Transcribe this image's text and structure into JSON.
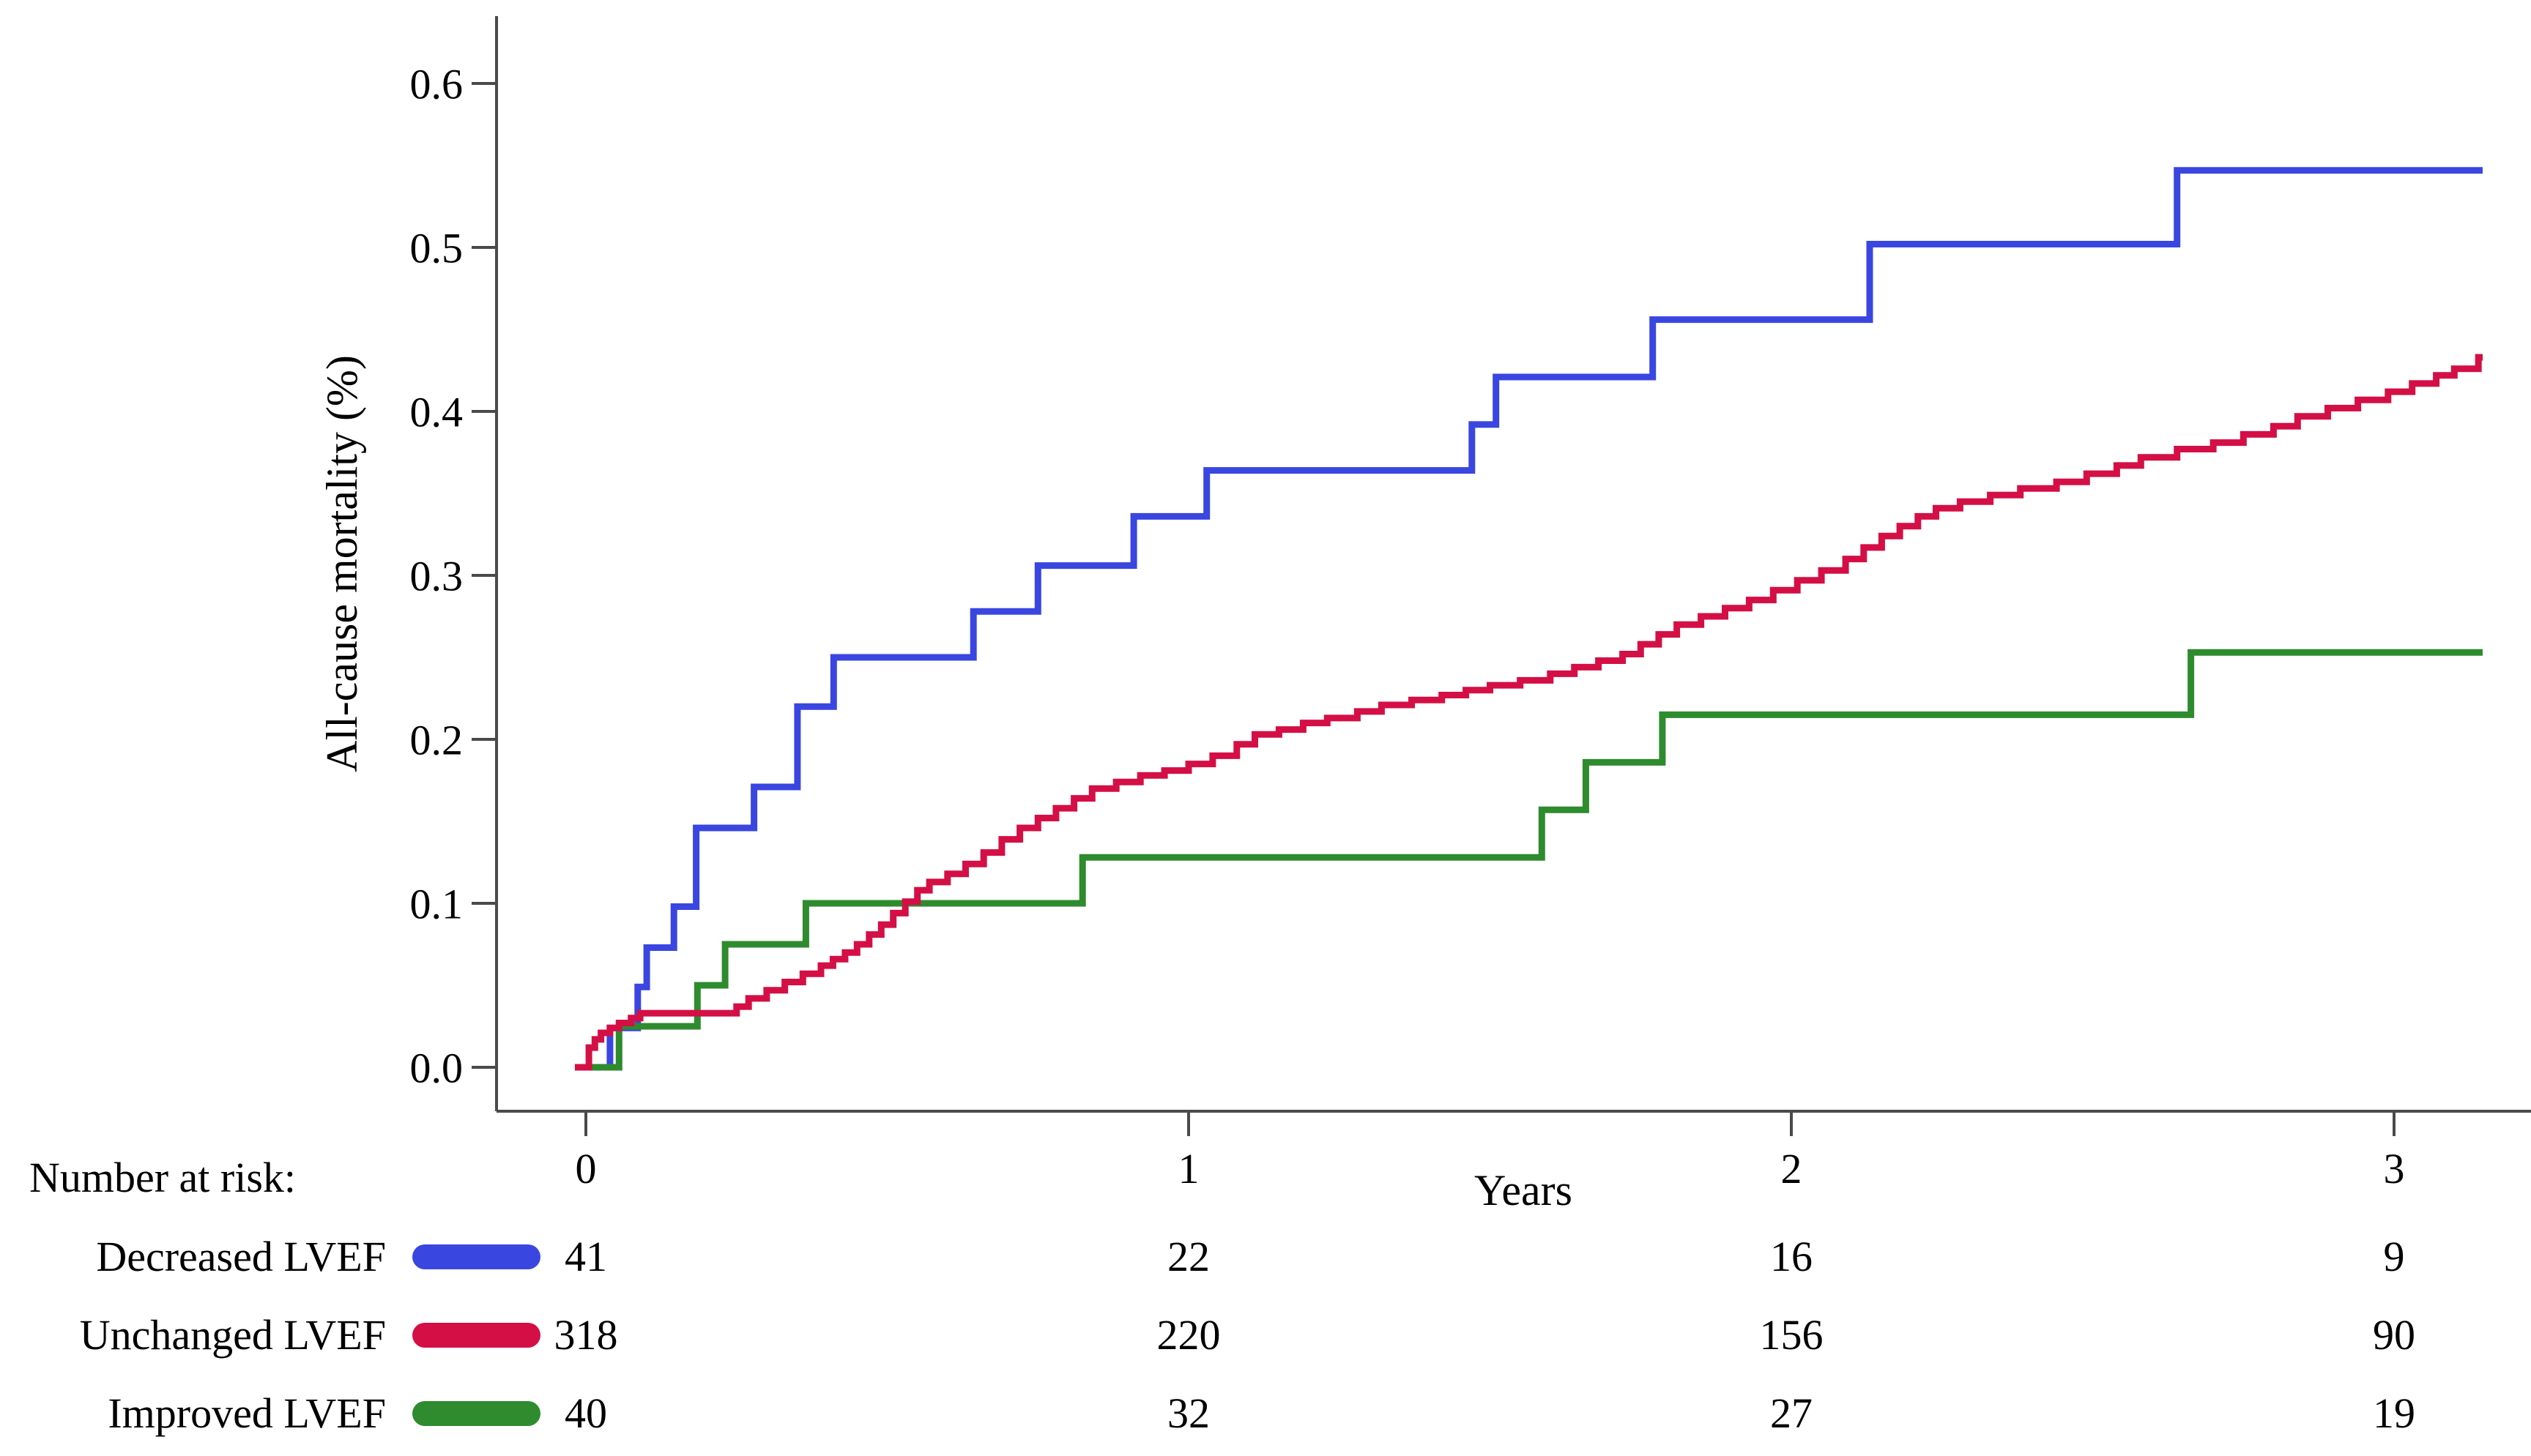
{
  "chart_data": {
    "type": "line",
    "subtype": "kaplan-meier-cumulative-incidence-steps",
    "title": "",
    "xlabel": "Years",
    "ylabel": "All-cause mortality (%)",
    "xlim": [
      0,
      3.23
    ],
    "ylim": [
      0,
      0.64
    ],
    "grid": false,
    "legend_position": "bottom-risk-table",
    "axis_color": "#4a4a4a",
    "xticks": [
      {
        "t": 0,
        "label": "0"
      },
      {
        "t": 1,
        "label": "1"
      },
      {
        "t": 2,
        "label": "2"
      },
      {
        "t": 3,
        "label": "3"
      }
    ],
    "yticks": [
      {
        "v": 0.0,
        "label": "0.0"
      },
      {
        "v": 0.1,
        "label": "0.1"
      },
      {
        "v": 0.2,
        "label": "0.2"
      },
      {
        "v": 0.3,
        "label": "0.3"
      },
      {
        "v": 0.4,
        "label": "0.4"
      },
      {
        "v": 0.5,
        "label": "0.5"
      },
      {
        "v": 0.6,
        "label": "0.6"
      }
    ],
    "series": [
      {
        "name": "Decreased LVEF",
        "color": "#3a46e0",
        "start": [
          0,
          0
        ],
        "end_t": 3.147,
        "steps": [
          [
            0.04,
            0.024
          ],
          [
            0.086,
            0.049
          ],
          [
            0.101,
            0.073
          ],
          [
            0.146,
            0.098
          ],
          [
            0.183,
            0.146
          ],
          [
            0.279,
            0.171
          ],
          [
            0.351,
            0.22
          ],
          [
            0.411,
            0.25
          ],
          [
            0.643,
            0.278
          ],
          [
            0.75,
            0.306
          ],
          [
            0.909,
            0.336
          ],
          [
            1.03,
            0.364
          ],
          [
            1.47,
            0.392
          ],
          [
            1.51,
            0.421
          ],
          [
            1.77,
            0.456
          ],
          [
            2.13,
            0.502
          ],
          [
            2.64,
            0.547
          ]
        ]
      },
      {
        "name": "Improved LVEF",
        "color": "#2e8b2e",
        "start": [
          0,
          0
        ],
        "end_t": 3.147,
        "steps": [
          [
            0.055,
            0.025
          ],
          [
            0.185,
            0.05
          ],
          [
            0.231,
            0.075
          ],
          [
            0.365,
            0.1
          ],
          [
            0.824,
            0.128
          ],
          [
            1.586,
            0.157
          ],
          [
            1.659,
            0.186
          ],
          [
            1.786,
            0.215
          ],
          [
            2.663,
            0.253
          ]
        ]
      },
      {
        "name": "Unchanged LVEF",
        "color": "#d40f45",
        "start": [
          0,
          0
        ],
        "end_t": 3.147,
        "steps": [
          [
            0.005,
            0.012
          ],
          [
            0.015,
            0.017
          ],
          [
            0.025,
            0.021
          ],
          [
            0.04,
            0.024
          ],
          [
            0.055,
            0.027
          ],
          [
            0.075,
            0.03
          ],
          [
            0.09,
            0.033
          ],
          [
            0.25,
            0.037
          ],
          [
            0.27,
            0.042
          ],
          [
            0.3,
            0.047
          ],
          [
            0.33,
            0.052
          ],
          [
            0.36,
            0.057
          ],
          [
            0.39,
            0.062
          ],
          [
            0.41,
            0.066
          ],
          [
            0.43,
            0.07
          ],
          [
            0.45,
            0.075
          ],
          [
            0.47,
            0.081
          ],
          [
            0.49,
            0.087
          ],
          [
            0.51,
            0.094
          ],
          [
            0.53,
            0.101
          ],
          [
            0.55,
            0.108
          ],
          [
            0.57,
            0.113
          ],
          [
            0.6,
            0.118
          ],
          [
            0.63,
            0.124
          ],
          [
            0.66,
            0.131
          ],
          [
            0.69,
            0.139
          ],
          [
            0.72,
            0.146
          ],
          [
            0.75,
            0.152
          ],
          [
            0.78,
            0.158
          ],
          [
            0.81,
            0.164
          ],
          [
            0.84,
            0.17
          ],
          [
            0.88,
            0.174
          ],
          [
            0.92,
            0.178
          ],
          [
            0.96,
            0.181
          ],
          [
            1.0,
            0.185
          ],
          [
            1.04,
            0.19
          ],
          [
            1.08,
            0.197
          ],
          [
            1.11,
            0.203
          ],
          [
            1.15,
            0.206
          ],
          [
            1.19,
            0.21
          ],
          [
            1.23,
            0.213
          ],
          [
            1.28,
            0.217
          ],
          [
            1.32,
            0.221
          ],
          [
            1.37,
            0.224
          ],
          [
            1.42,
            0.227
          ],
          [
            1.46,
            0.23
          ],
          [
            1.5,
            0.233
          ],
          [
            1.55,
            0.236
          ],
          [
            1.6,
            0.24
          ],
          [
            1.64,
            0.244
          ],
          [
            1.68,
            0.248
          ],
          [
            1.72,
            0.252
          ],
          [
            1.75,
            0.258
          ],
          [
            1.78,
            0.264
          ],
          [
            1.81,
            0.27
          ],
          [
            1.85,
            0.275
          ],
          [
            1.89,
            0.28
          ],
          [
            1.93,
            0.285
          ],
          [
            1.97,
            0.291
          ],
          [
            2.01,
            0.297
          ],
          [
            2.05,
            0.303
          ],
          [
            2.09,
            0.31
          ],
          [
            2.12,
            0.317
          ],
          [
            2.15,
            0.324
          ],
          [
            2.18,
            0.33
          ],
          [
            2.21,
            0.336
          ],
          [
            2.24,
            0.341
          ],
          [
            2.28,
            0.345
          ],
          [
            2.33,
            0.349
          ],
          [
            2.38,
            0.353
          ],
          [
            2.44,
            0.357
          ],
          [
            2.49,
            0.362
          ],
          [
            2.54,
            0.367
          ],
          [
            2.58,
            0.372
          ],
          [
            2.64,
            0.377
          ],
          [
            2.7,
            0.381
          ],
          [
            2.75,
            0.386
          ],
          [
            2.8,
            0.391
          ],
          [
            2.84,
            0.397
          ],
          [
            2.89,
            0.402
          ],
          [
            2.94,
            0.407
          ],
          [
            2.99,
            0.412
          ],
          [
            3.03,
            0.417
          ],
          [
            3.07,
            0.422
          ],
          [
            3.1,
            0.426
          ],
          [
            3.14,
            0.433
          ]
        ]
      }
    ],
    "risk_table": {
      "heading": "Number at risk:",
      "columns_t": [
        0,
        1,
        2,
        3
      ],
      "rows": [
        {
          "label": "Decreased LVEF",
          "color": "#3a46e0",
          "values": [
            41,
            22,
            16,
            9
          ]
        },
        {
          "label": "Unchanged LVEF",
          "color": "#d40f45",
          "values": [
            318,
            220,
            156,
            90
          ]
        },
        {
          "label": "Improved LVEF",
          "color": "#2e8b2e",
          "values": [
            40,
            32,
            27,
            19
          ]
        }
      ]
    }
  }
}
